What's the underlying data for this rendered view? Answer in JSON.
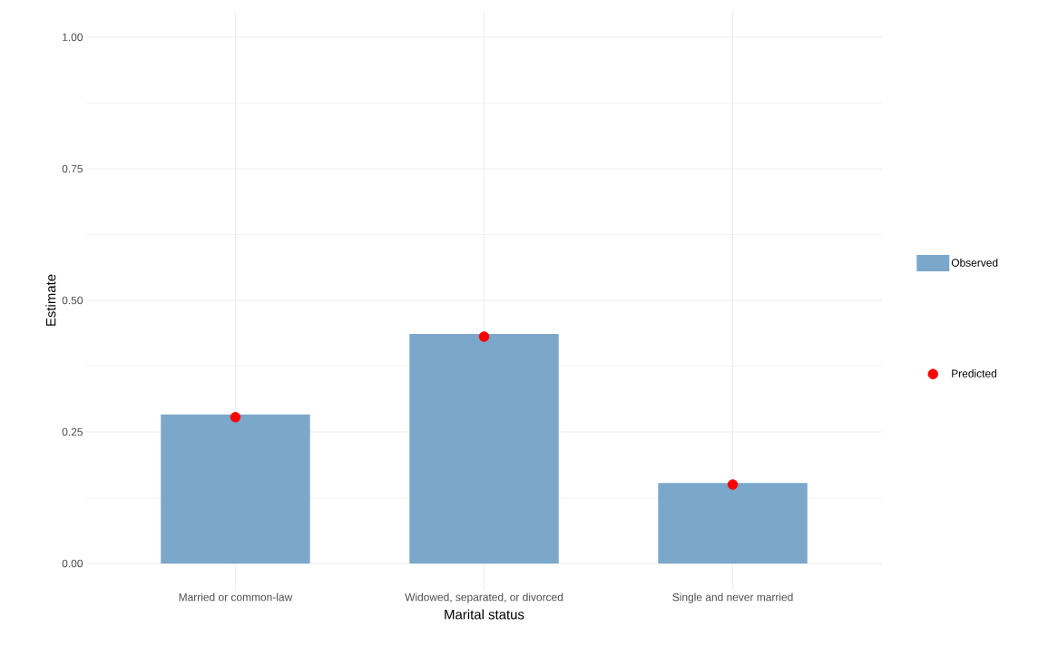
{
  "chart_data": {
    "type": "bar",
    "xlabel": "Marital status",
    "ylabel": "Estimate",
    "categories": [
      "Married or common-law",
      "Widowed, separated, or divorced",
      "Single and never married"
    ],
    "series": [
      {
        "name": "Observed",
        "color": "#7ba7cb",
        "values": [
          0.283,
          0.436,
          0.153
        ]
      },
      {
        "name": "Predicted",
        "type": "scatter",
        "color": "#ff0000",
        "marker": "circle",
        "x": [
          "Married or common-law",
          "Widowed, separated, or divorced",
          "Single and never married"
        ],
        "values": [
          0.278,
          0.431,
          0.15
        ]
      }
    ],
    "ylim": [
      -0.05,
      1.05
    ],
    "yticks": [
      {
        "value": 0,
        "label": "0.00"
      },
      {
        "value": 0.25,
        "label": "0.25"
      },
      {
        "value": 0.5,
        "label": "0.50"
      },
      {
        "value": 0.75,
        "label": "0.75"
      },
      {
        "value": 1,
        "label": "1.00"
      }
    ],
    "grid": true,
    "legend": "right"
  }
}
